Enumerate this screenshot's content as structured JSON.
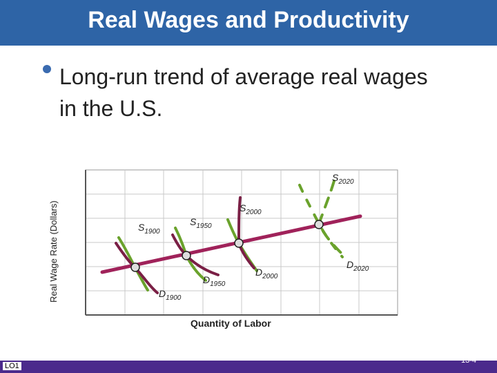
{
  "slide": {
    "title": "Real Wages and Productivity",
    "bullet": "Long-run trend of average real wages in the U.S.",
    "footer_left": "LO1",
    "page_number": "13-4"
  },
  "diagram": {
    "y_axis_label": "Real Wage Rate (Dollars)",
    "x_axis_label": "Quantity of Labor",
    "colors": {
      "supply": "#6aa22c",
      "demand": "#7a1f45",
      "trend": "#a0225a",
      "equilibrium_point": "#dddddd",
      "title_bar": "#2e64a6",
      "footer_bar": "#4b2a8c"
    },
    "supply_curves": [
      {
        "base": "S",
        "sub": "1900"
      },
      {
        "base": "S",
        "sub": "1950"
      },
      {
        "base": "S",
        "sub": "2000"
      },
      {
        "base": "S",
        "sub": "2020"
      }
    ],
    "demand_curves": [
      {
        "base": "D",
        "sub": "1900"
      },
      {
        "base": "D",
        "sub": "1950"
      },
      {
        "base": "D",
        "sub": "2000"
      },
      {
        "base": "D",
        "sub": "2020"
      }
    ]
  }
}
